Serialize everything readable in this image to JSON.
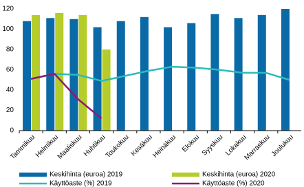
{
  "chart_data": {
    "type": "bar",
    "categories": [
      "Tammikuu",
      "Helmikuu",
      "Maaliskuu",
      "Huhtikuu",
      "Toukokuu",
      "Kesäkuu",
      "Heinäkuu",
      "Elokuu",
      "Syyskuu",
      "Lokakuu",
      "Marraskuu",
      "Joulukuu"
    ],
    "series": [
      {
        "name": "Keskihinta (euroa) 2019",
        "type": "bar",
        "color": "#0a6aa8",
        "values": [
          108,
          111,
          110,
          102,
          108,
          112,
          102,
          106,
          115,
          111,
          114,
          120
        ]
      },
      {
        "name": "Keskihinta (euroa) 2020",
        "type": "bar",
        "color": "#b5cc2a",
        "values": [
          114,
          116,
          114,
          80,
          null,
          null,
          null,
          null,
          null,
          null,
          null,
          null
        ]
      },
      {
        "name": "Käyttöaste (%) 2019",
        "type": "line",
        "color": "#2bbcbc",
        "values": [
          51,
          56,
          55,
          49,
          54,
          59,
          63,
          62,
          60,
          57,
          57,
          50
        ]
      },
      {
        "name": "Käyttöaste (%) 2020",
        "type": "line",
        "color": "#8e1b6e",
        "values": [
          51,
          56,
          31,
          12,
          null,
          null,
          null,
          null,
          null,
          null,
          null,
          null
        ]
      }
    ],
    "ylim": [
      0,
      120
    ],
    "yticks": [
      0,
      20,
      40,
      60,
      80,
      100,
      120
    ],
    "grid": false,
    "legend": "bottom"
  }
}
